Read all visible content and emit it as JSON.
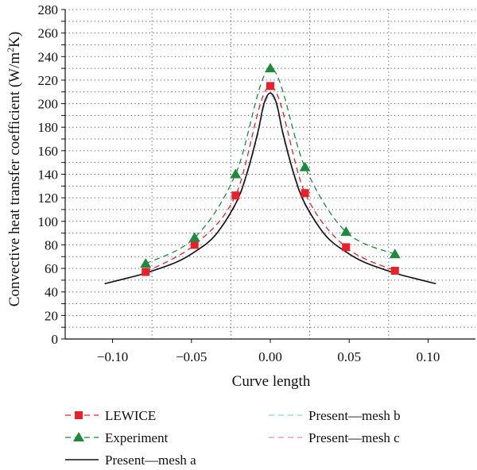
{
  "chart_data": {
    "type": "line",
    "xlabel": "Curve length",
    "ylabel": "Convective heat transfer coefficient (W/m²K)",
    "ylabel_parts": {
      "pre": "Convective heat transfer coefficient (W/m",
      "sup": "2",
      "post": "K)"
    },
    "xlim": [
      -0.13,
      0.13
    ],
    "ylim": [
      0,
      280
    ],
    "x_ticks": [
      -0.1,
      -0.05,
      0.0,
      0.05,
      0.1
    ],
    "x_tick_labels": [
      "−0.10",
      "−0.05",
      "0.00",
      "0.05",
      "0.10"
    ],
    "y_ticks": [
      0,
      10,
      20,
      30,
      40,
      50,
      60,
      70,
      80,
      90,
      100,
      110,
      120,
      130,
      140,
      150,
      160,
      170,
      180,
      190,
      200,
      210,
      220,
      230,
      240,
      250,
      260,
      270,
      280
    ],
    "y_tick_labels": [
      "0",
      "",
      "20",
      "",
      "40",
      "",
      "60",
      "",
      "80",
      "",
      "100",
      "",
      "120",
      "",
      "140",
      "",
      "160",
      "",
      "180",
      "",
      "200",
      "",
      "220",
      "",
      "240",
      "",
      "260",
      "",
      "280"
    ],
    "grid": {
      "vertical_x": [
        -0.075,
        -0.025,
        0.025,
        0.075
      ],
      "horizontal": true,
      "style": "dotted"
    },
    "legend_position": "below",
    "series": [
      {
        "name": "LEWICE",
        "style": "dashed",
        "marker": "square",
        "color": "#e8202a",
        "x": [
          -0.079,
          -0.048,
          -0.022,
          0.0,
          0.022,
          0.048,
          0.079
        ],
        "y": [
          57,
          80,
          122,
          215,
          124,
          78,
          58
        ]
      },
      {
        "name": "Experiment",
        "style": "dashed",
        "marker": "triangle",
        "color": "#1e8a3c",
        "x": [
          -0.079,
          -0.048,
          -0.022,
          0.0,
          0.022,
          0.048,
          0.079
        ],
        "y": [
          64,
          86,
          140,
          230,
          146,
          91,
          72
        ]
      },
      {
        "name": "Present—mesh a",
        "style": "solid",
        "marker": "none",
        "color": "#111111",
        "x": [
          -0.105,
          -0.09,
          -0.079,
          -0.06,
          -0.048,
          -0.035,
          -0.022,
          -0.015,
          -0.008,
          -0.004,
          0.0,
          0.004,
          0.008,
          0.015,
          0.022,
          0.035,
          0.048,
          0.06,
          0.079,
          0.09,
          0.105
        ],
        "y": [
          47,
          52,
          56,
          65,
          74,
          88,
          115,
          140,
          175,
          200,
          209,
          200,
          175,
          140,
          115,
          88,
          74,
          65,
          56,
          52,
          47
        ]
      },
      {
        "name": "Present—mesh b",
        "style": "dashed",
        "marker": "none",
        "color": "#8ecfe8",
        "x": [
          -0.105,
          -0.09,
          -0.079,
          -0.06,
          -0.048,
          -0.035,
          -0.022,
          -0.015,
          -0.008,
          -0.004,
          0.0,
          0.004,
          0.008,
          0.015,
          0.022,
          0.035,
          0.048,
          0.06,
          0.079,
          0.09,
          0.105
        ],
        "y": [
          47,
          52,
          56,
          65,
          74,
          88,
          114,
          139,
          173,
          198,
          207,
          198,
          173,
          139,
          114,
          88,
          74,
          65,
          56,
          52,
          47
        ]
      },
      {
        "name": "Present—mesh c",
        "style": "dashed",
        "marker": "none",
        "color": "#f08aa8",
        "x": [
          -0.105,
          -0.09,
          -0.079,
          -0.06,
          -0.048,
          -0.035,
          -0.022,
          -0.015,
          -0.008,
          -0.004,
          0.0,
          0.004,
          0.008,
          0.015,
          0.022,
          0.035,
          0.048,
          0.06,
          0.079,
          0.09,
          0.105
        ],
        "y": [
          47,
          52,
          56,
          65,
          74,
          88,
          114,
          139,
          174,
          199,
          208,
          199,
          174,
          139,
          114,
          88,
          74,
          65,
          56,
          52,
          47
        ]
      }
    ]
  }
}
